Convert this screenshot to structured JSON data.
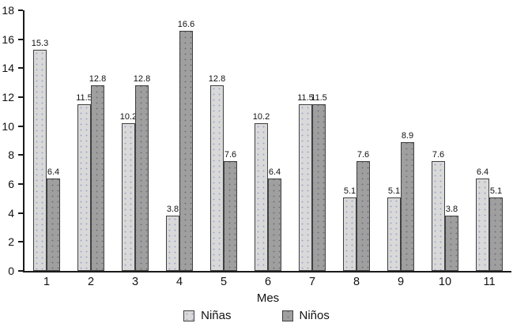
{
  "chart_data": {
    "type": "bar",
    "title": "",
    "xlabel": "Mes",
    "ylabel": "",
    "categories": [
      "1",
      "2",
      "3",
      "4",
      "5",
      "6",
      "7",
      "8",
      "9",
      "10",
      "11"
    ],
    "series": [
      {
        "name": "Niñas",
        "color": "#d9d9d9",
        "values": [
          15.3,
          11.5,
          10.2,
          3.8,
          12.8,
          10.2,
          11.5,
          5.1,
          5.1,
          7.6,
          6.4
        ]
      },
      {
        "name": "Niños",
        "color": "#9f9f9f",
        "values": [
          6.4,
          12.8,
          12.8,
          16.6,
          7.6,
          6.4,
          11.5,
          7.6,
          8.9,
          3.8,
          5.1
        ]
      }
    ],
    "ylim": [
      0,
      18
    ],
    "yticks": [
      0,
      2,
      4,
      6,
      8,
      10,
      12,
      14,
      16,
      18
    ],
    "grid": false,
    "legend_position": "bottom",
    "bar_border_color": "#3f3f3f",
    "axis_color": "#1a1a1a",
    "text_color": "#111111"
  }
}
